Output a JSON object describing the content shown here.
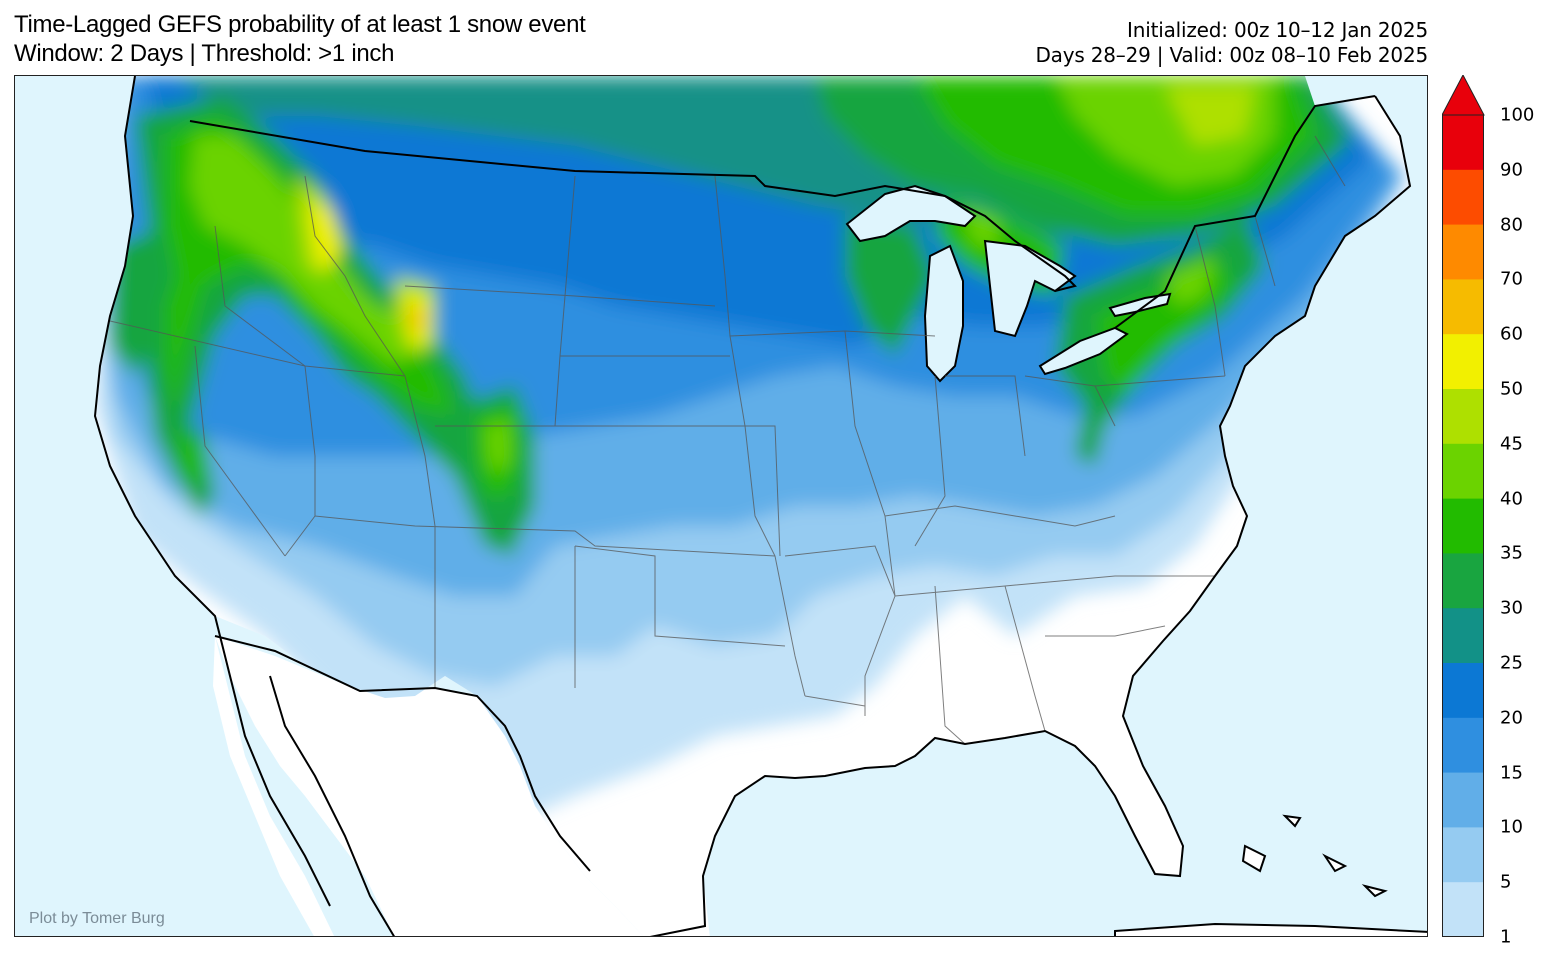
{
  "header": {
    "title_line1": "Time-Lagged GEFS probability of at least 1 snow event",
    "title_line2": "Window: 2 Days | Threshold: >1 inch",
    "init_line": "Initialized: 00z 10–12 Jan 2025",
    "valid_line": "Days 28–29 | Valid: 00z 08–10 Feb 2025"
  },
  "credit": "Plot by Tomer Burg",
  "colorbar": {
    "labels": [
      "100",
      "90",
      "80",
      "70",
      "60",
      "50",
      "45",
      "40",
      "35",
      "30",
      "25",
      "20",
      "15",
      "10",
      "5",
      "1"
    ],
    "colors": [
      "#e8000b",
      "#fd4c00",
      "#fe8a00",
      "#f6bb00",
      "#f2f000",
      "#aee000",
      "#6bd300",
      "#22bb00",
      "#19a540",
      "#129187",
      "#0c78d4",
      "#2f8fe0",
      "#61aee8",
      "#95cbf1",
      "#c2e2f8"
    ],
    "extend_color": "#e8000b"
  },
  "map": {
    "ocean_color": "#dff5fd",
    "land_color": "#ffffff",
    "region": "Contiguous United States"
  }
}
